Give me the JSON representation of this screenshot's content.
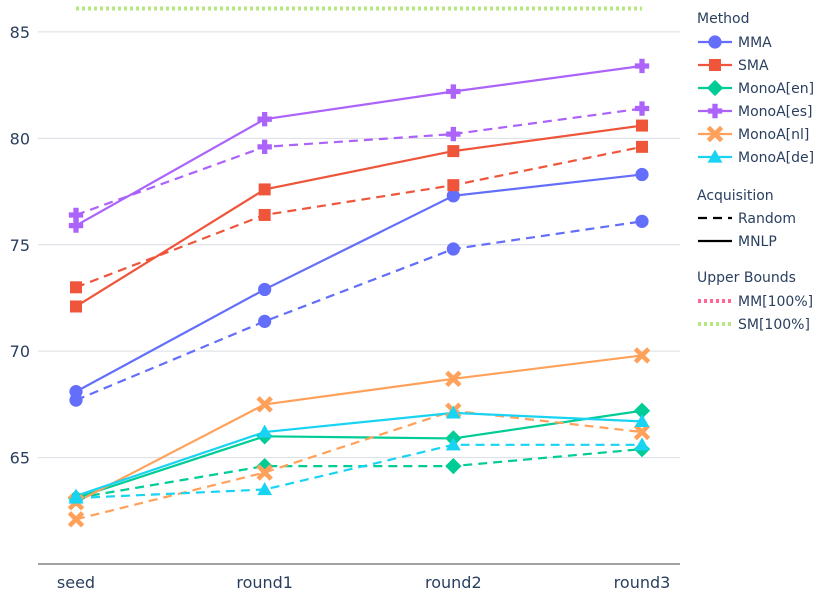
{
  "chart_data": {
    "type": "line",
    "categories": [
      "seed",
      "round1",
      "round2",
      "round3"
    ],
    "ylim": [
      60,
      86.5
    ],
    "yticks": [
      65,
      70,
      75,
      80,
      85
    ],
    "grid": true,
    "legend_position": "right",
    "series": [
      {
        "name": "MMA",
        "acquisition": "Random",
        "color": "#636efa",
        "marker": "circle",
        "values": [
          67.7,
          71.4,
          74.8,
          76.1
        ]
      },
      {
        "name": "MMA",
        "acquisition": "MNLP",
        "color": "#636efa",
        "marker": "circle",
        "values": [
          68.1,
          72.9,
          77.3,
          78.3
        ]
      },
      {
        "name": "SMA",
        "acquisition": "Random",
        "color": "#ef553b",
        "marker": "square",
        "values": [
          73.0,
          76.4,
          77.8,
          79.6
        ]
      },
      {
        "name": "SMA",
        "acquisition": "MNLP",
        "color": "#ef553b",
        "marker": "square",
        "values": [
          72.1,
          77.6,
          79.4,
          80.6
        ]
      },
      {
        "name": "MonoA[en]",
        "acquisition": "Random",
        "color": "#00cc96",
        "marker": "diamond",
        "values": [
          63.1,
          64.6,
          64.6,
          65.4
        ]
      },
      {
        "name": "MonoA[en]",
        "acquisition": "MNLP",
        "color": "#00cc96",
        "marker": "diamond",
        "values": [
          63.1,
          66.0,
          65.9,
          67.2
        ]
      },
      {
        "name": "MonoA[es]",
        "acquisition": "Random",
        "color": "#ab63fa",
        "marker": "cross",
        "values": [
          76.4,
          79.6,
          80.2,
          81.4
        ]
      },
      {
        "name": "MonoA[es]",
        "acquisition": "MNLP",
        "color": "#ab63fa",
        "marker": "cross",
        "values": [
          75.9,
          80.9,
          82.2,
          83.4
        ]
      },
      {
        "name": "MonoA[nl]",
        "acquisition": "Random",
        "color": "#ffa15a",
        "marker": "x",
        "values": [
          62.1,
          64.3,
          67.2,
          66.2
        ]
      },
      {
        "name": "MonoA[nl]",
        "acquisition": "MNLP",
        "color": "#ffa15a",
        "marker": "x",
        "values": [
          62.9,
          67.5,
          68.7,
          69.8
        ]
      },
      {
        "name": "MonoA[de]",
        "acquisition": "Random",
        "color": "#19d3f3",
        "marker": "triangle-up",
        "values": [
          63.1,
          63.5,
          65.6,
          65.6
        ]
      },
      {
        "name": "MonoA[de]",
        "acquisition": "MNLP",
        "color": "#19d3f3",
        "marker": "triangle-up",
        "values": [
          63.2,
          66.2,
          67.1,
          66.7
        ]
      }
    ],
    "upper_bounds": [
      {
        "name": "MM[100%]",
        "color": "#ff6692",
        "value": 86.1
      },
      {
        "name": "SM[100%]",
        "color": "#b6e880",
        "value": 86.1
      }
    ]
  },
  "legend": {
    "method_title": "Method",
    "methods": [
      {
        "label": "MMA",
        "color": "#636efa",
        "marker": "circle"
      },
      {
        "label": "SMA",
        "color": "#ef553b",
        "marker": "square"
      },
      {
        "label": "MonoA[en]",
        "color": "#00cc96",
        "marker": "diamond"
      },
      {
        "label": "MonoA[es]",
        "color": "#ab63fa",
        "marker": "cross"
      },
      {
        "label": "MonoA[nl]",
        "color": "#ffa15a",
        "marker": "x"
      },
      {
        "label": "MonoA[de]",
        "color": "#19d3f3",
        "marker": "triangle-up"
      }
    ],
    "acquisition_title": "Acquisition",
    "acquisitions": [
      {
        "label": "Random",
        "style": "dashed"
      },
      {
        "label": "MNLP",
        "style": "solid"
      }
    ],
    "bounds_title": "Upper Bounds",
    "bounds": [
      {
        "label": "MM[100%]",
        "color": "#ff6692"
      },
      {
        "label": "SM[100%]",
        "color": "#b6e880"
      }
    ]
  }
}
